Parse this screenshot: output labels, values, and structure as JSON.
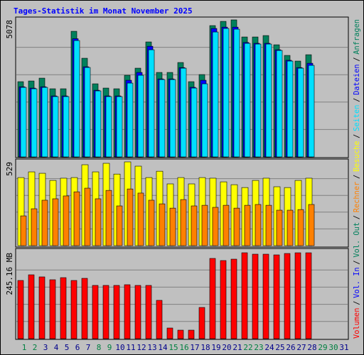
{
  "title": "Tages-Statistik im Monat November 2025",
  "legend_separator": "/",
  "chart_data": [
    {
      "type": "bar",
      "ylim": [
        0,
        5078
      ],
      "yticks": [
        5078
      ],
      "series": [
        {
          "name": "Anfragen",
          "color": "#00805c",
          "values": [
            2788,
            2814,
            2919,
            2525,
            2525,
            4655,
            3656,
            2709,
            2551,
            2525,
            3025,
            3288,
            4261,
            3130,
            3130,
            3498,
            2788,
            3051,
            4866,
            5023,
            5078,
            4445,
            4445,
            4497,
            4155,
            3761,
            3551,
            3787,
            null,
            null,
            null
          ]
        },
        {
          "name": "Dateien",
          "color": "#0000ff",
          "values": [
            2600,
            2550,
            2600,
            2260,
            2260,
            4380,
            3340,
            2470,
            2260,
            2260,
            2840,
            3130,
            4100,
            2890,
            2890,
            3310,
            2580,
            2840,
            4760,
            4810,
            4810,
            4240,
            4210,
            4210,
            3970,
            3580,
            3310,
            3470,
            null,
            null,
            null
          ]
        },
        {
          "name": "Seiten",
          "color": "#00e0ff",
          "values": [
            2577,
            2525,
            2577,
            2236,
            2236,
            4313,
            3314,
            2446,
            2236,
            2236,
            2735,
            3025,
            3971,
            2867,
            2867,
            3288,
            2551,
            2709,
            4629,
            4760,
            4734,
            4208,
            4182,
            4182,
            3945,
            3551,
            3288,
            3393,
            null,
            null,
            null
          ]
        }
      ]
    },
    {
      "type": "bar",
      "ylim": [
        0,
        529
      ],
      "yticks": [
        529
      ],
      "series": [
        {
          "name": "Besuche",
          "color": "#ffff00",
          "values": [
            430,
            466,
            457,
            412,
            426,
            430,
            511,
            466,
            520,
            452,
            529,
            502,
            430,
            470,
            390,
            430,
            390,
            430,
            426,
            403,
            385,
            367,
            412,
            426,
            372,
            367,
            412,
            426,
            null,
            null,
            null
          ]
        },
        {
          "name": "Rechner",
          "color": "#ff8000",
          "values": [
            188,
            233,
            287,
            296,
            314,
            340,
            363,
            296,
            349,
            251,
            358,
            332,
            287,
            264,
            237,
            291,
            251,
            255,
            242,
            255,
            237,
            255,
            260,
            255,
            224,
            224,
            228,
            260,
            null,
            null,
            null
          ]
        }
      ]
    },
    {
      "type": "bar",
      "ylim": [
        0,
        245.16
      ],
      "yticks": [
        {
          "value": 245.16,
          "label": "245.16 MB"
        }
      ],
      "categories": [
        "1",
        "2",
        "3",
        "4",
        "5",
        "6",
        "7",
        "8",
        "9",
        "10",
        "11",
        "12",
        "13",
        "14",
        "15",
        "16",
        "17",
        "18",
        "19",
        "20",
        "21",
        "22",
        "23",
        "24",
        "25",
        "26",
        "27",
        "28",
        "29",
        "30",
        "31"
      ],
      "category_colors": [
        "#008040",
        "#008040",
        "#00008b",
        "#00008b",
        "#00008b",
        "#00008b",
        "#00008b",
        "#008040",
        "#008040",
        "#00008b",
        "#00008b",
        "#00008b",
        "#00008b",
        "#00008b",
        "#008040",
        "#008040",
        "#00008b",
        "#00008b",
        "#00008b",
        "#00008b",
        "#00008b",
        "#008040",
        "#008040",
        "#00008b",
        "#00008b",
        "#00008b",
        "#00008b",
        "#00008b",
        "#008040",
        "#008040",
        "#00008b"
      ],
      "series": [
        {
          "name": "Volumen",
          "color": "#ff0000",
          "values": [
            166.1,
            182.3,
            176.3,
            168.2,
            174.2,
            166.1,
            172.2,
            152.0,
            152.0,
            152.0,
            154.0,
            152.0,
            152.0,
            109.4,
            30.4,
            24.3,
            24.3,
            89.1,
            229.0,
            222.9,
            226.9,
            245.16,
            241.1,
            241.1,
            239.1,
            243.1,
            245.1,
            245.1,
            null,
            null,
            null
          ]
        },
        {
          "name": "Vol. In",
          "color": "#0000ff",
          "values": [
            null,
            null,
            null,
            null,
            null,
            null,
            null,
            null,
            null,
            null,
            null,
            null,
            null,
            null,
            null,
            null,
            null,
            null,
            null,
            null,
            null,
            null,
            null,
            null,
            null,
            null,
            null,
            null,
            null,
            null,
            null
          ]
        },
        {
          "name": "Vol. Out",
          "color": "#00805c",
          "values": [
            null,
            null,
            null,
            null,
            null,
            null,
            null,
            null,
            null,
            null,
            null,
            null,
            null,
            null,
            null,
            null,
            null,
            null,
            null,
            null,
            null,
            null,
            null,
            null,
            null,
            null,
            null,
            null,
            null,
            null,
            null
          ]
        }
      ]
    }
  ]
}
